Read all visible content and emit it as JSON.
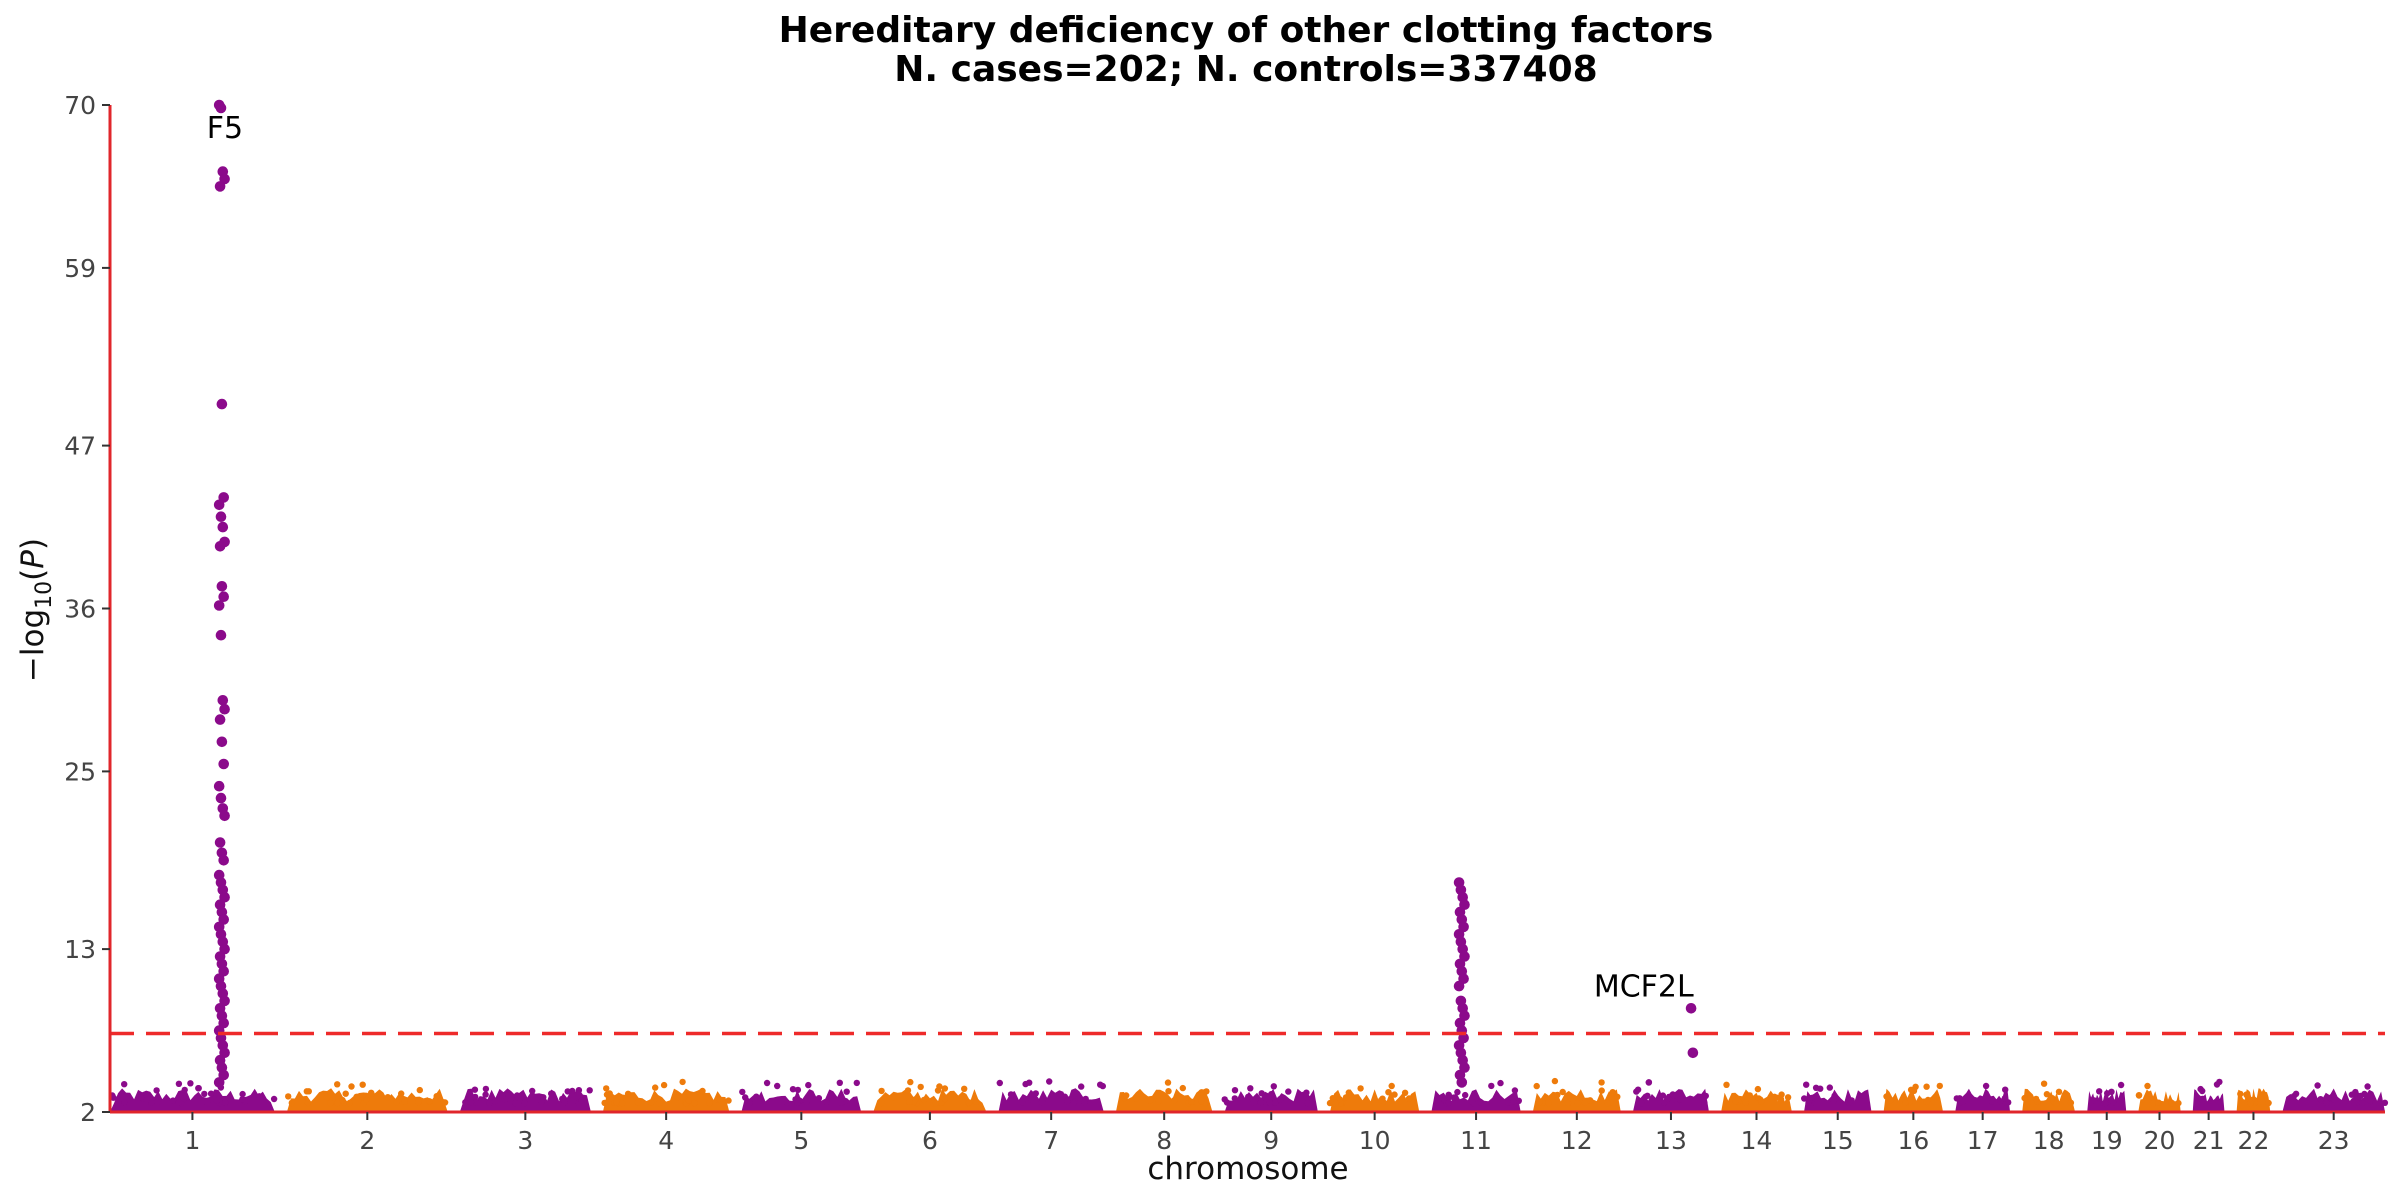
{
  "chart_data": {
    "type": "scatter",
    "title": "Hereditary deficiency of other clotting factors",
    "subtitle": "N. cases=202; N. controls=337408",
    "xlabel": "chromosome",
    "ylabel": "−log10(P)",
    "ylim": [
      2,
      70
    ],
    "yticks": [
      2,
      13,
      25,
      36,
      47,
      59,
      70
    ],
    "threshold": 7.3,
    "grid": false,
    "colors": {
      "odd_chromosomes": "#8b0a8b",
      "even_chromosomes": "#ee7b0b",
      "axes": "#e0262b",
      "threshold_line": "#ee2a2a"
    },
    "chromosomes": [
      {
        "label": "1",
        "size": 249
      },
      {
        "label": "2",
        "size": 243
      },
      {
        "label": "3",
        "size": 198
      },
      {
        "label": "4",
        "size": 191
      },
      {
        "label": "5",
        "size": 181
      },
      {
        "label": "6",
        "size": 171
      },
      {
        "label": "7",
        "size": 159
      },
      {
        "label": "8",
        "size": 146
      },
      {
        "label": "9",
        "size": 141
      },
      {
        "label": "10",
        "size": 135
      },
      {
        "label": "11",
        "size": 135
      },
      {
        "label": "12",
        "size": 133
      },
      {
        "label": "13",
        "size": 115
      },
      {
        "label": "14",
        "size": 107
      },
      {
        "label": "15",
        "size": 102
      },
      {
        "label": "16",
        "size": 90
      },
      {
        "label": "17",
        "size": 83
      },
      {
        "label": "18",
        "size": 80
      },
      {
        "label": "19",
        "size": 59
      },
      {
        "label": "20",
        "size": 64
      },
      {
        "label": "21",
        "size": 48
      },
      {
        "label": "22",
        "size": 51
      },
      {
        "label": "23",
        "size": 155
      }
    ],
    "peaks": [
      {
        "chromosome": "1",
        "position": 169,
        "values": [
          70,
          69.8,
          65.5,
          65,
          64.5,
          49.8,
          43.5,
          43,
          42.2,
          41.5,
          40.5,
          40.2,
          37.5,
          36.8,
          36.2,
          34.2,
          29.8,
          29.2,
          28.5,
          27,
          25.5,
          24,
          23.2,
          22.5,
          22,
          20.2,
          19.5,
          19,
          18,
          17.5,
          17,
          16.5,
          16,
          15.5,
          15,
          14.5,
          14,
          13.5,
          13,
          12.5,
          12,
          11.5,
          11,
          10.5,
          10,
          9.5,
          9,
          8.5,
          8,
          7.5,
          7,
          6.5,
          6,
          5.5,
          5,
          4.5,
          4
        ]
      },
      {
        "chromosome": "11",
        "position": 46,
        "values": [
          17.5,
          17,
          16.5,
          16,
          15.5,
          15,
          14.5,
          14,
          13.5,
          13,
          12.5,
          12,
          11.5,
          11,
          10.5,
          9.5,
          9,
          8.5,
          8,
          7.5,
          7,
          6.5,
          6,
          5.5,
          5,
          4.5,
          4
        ]
      },
      {
        "chromosome": "13",
        "position": 92,
        "values": [
          9,
          6
        ]
      }
    ],
    "annotations": [
      {
        "text": "F5",
        "chromosome": "1",
        "position": 169,
        "value": 70
      },
      {
        "text": "MCF2L",
        "chromosome": "13",
        "position": 92,
        "value": 9
      }
    ]
  }
}
